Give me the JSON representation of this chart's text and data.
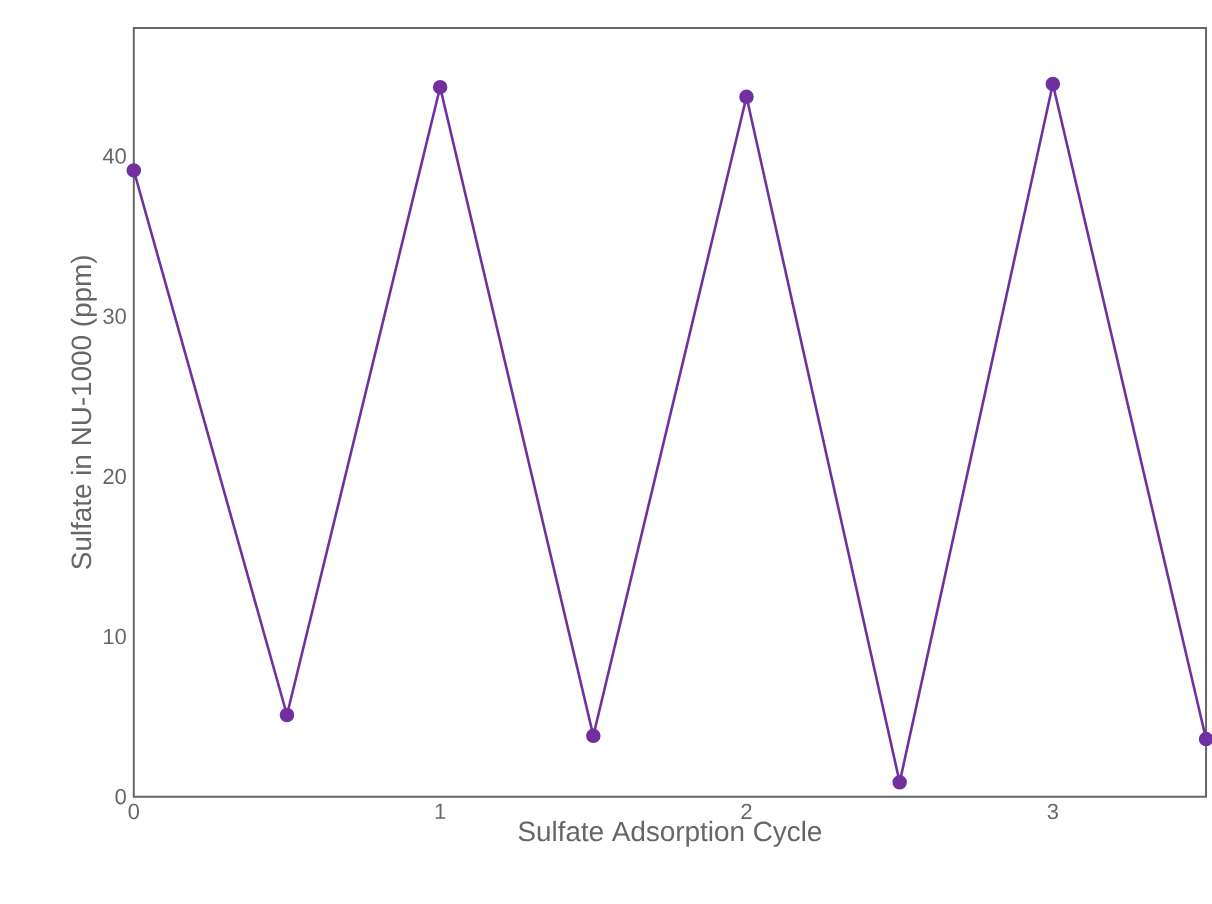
{
  "chart_data": {
    "type": "line",
    "xlabel": "Sulfate Adsorption Cycle",
    "ylabel": "Sulfate in NU-1000 (ppm)",
    "x": [
      0,
      0.5,
      1,
      1.5,
      2,
      2.5,
      3,
      3.5
    ],
    "series": [
      {
        "color": "#7030a0",
        "values": [
          39.1,
          5.1,
          44.3,
          3.8,
          43.7,
          0.9,
          44.5,
          3.6
        ]
      }
    ],
    "xlim": [
      0,
      3.5
    ],
    "xticks": [
      0,
      1,
      2,
      3
    ],
    "ylim": [
      0,
      48
    ],
    "yticks": [
      0,
      10,
      20,
      30,
      40
    ],
    "marker": "circle",
    "line_style": "solid"
  }
}
